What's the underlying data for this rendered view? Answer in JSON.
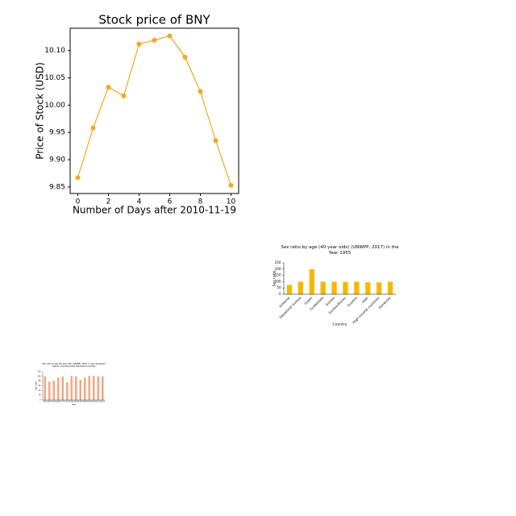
{
  "chart_data": [
    {
      "type": "line",
      "title": "Stock price of BNY",
      "x_label": "Number of Days after 2010-11-19",
      "y_label": "Price of Stock (USD)",
      "x": [
        0,
        1,
        2,
        3,
        4,
        5,
        6,
        7,
        8,
        9,
        10
      ],
      "series": [
        {
          "name": "BNY",
          "color": "#f5a623",
          "values": [
            9.867,
            9.958,
            10.033,
            10.017,
            10.112,
            10.119,
            10.127,
            10.088,
            10.025,
            9.935,
            9.853
          ]
        }
      ],
      "xlim": [
        -0.5,
        10.5
      ],
      "xticks": [
        0,
        2,
        4,
        6,
        8,
        10
      ],
      "ylim": [
        9.838,
        10.141
      ],
      "yticks": [
        9.85,
        {
          "value": 9.9,
          "label": "9.90"
        },
        9.95,
        {
          "value": 10.0,
          "label": "10.00"
        },
        10.05,
        {
          "value": 10.1,
          "label": "10.10"
        }
      ],
      "grid": false
    },
    {
      "type": "bar",
      "title": "Sex ratio by age (40 year olds) (UNWPP, 2017) in the Year 1955",
      "x_label": "Country",
      "y_label": "Sex ratio",
      "categories": [
        "Armenia",
        "Equatorial Guinea",
        "Guam",
        "Guatemala",
        "Guinea",
        "Guinea-Bissau",
        "Guyana",
        "Haiti",
        "High-income countries",
        "Honduras"
      ],
      "values": [
        75,
        100,
        200,
        100,
        100,
        98,
        100,
        95,
        95,
        100
      ],
      "color": "#f5b800",
      "ylim": [
        0,
        250
      ],
      "yticks": [
        0,
        50,
        100,
        150,
        200,
        250
      ],
      "grid": false
    },
    {
      "type": "bar",
      "title": "Sex ratio by age (20 year olds) (UNWPP, 2017) in Less developed regions, excluding least developed countries",
      "x_label": "Year",
      "y_label": "Sex ratio",
      "categories": [
        "1950",
        "1955",
        "1960",
        "1965",
        "1970",
        "1975",
        "1980",
        "1985",
        "1990",
        "1995",
        "2000",
        "2005",
        "2010",
        "2015"
      ],
      "values": [
        100,
        78,
        82,
        95,
        100,
        75,
        102,
        100,
        85,
        95,
        102,
        102,
        100,
        100
      ],
      "color": "#f4a582",
      "ylim": [
        0,
        120
      ],
      "yticks": [
        0,
        20,
        40,
        60,
        80,
        100,
        120
      ],
      "grid": false
    }
  ]
}
